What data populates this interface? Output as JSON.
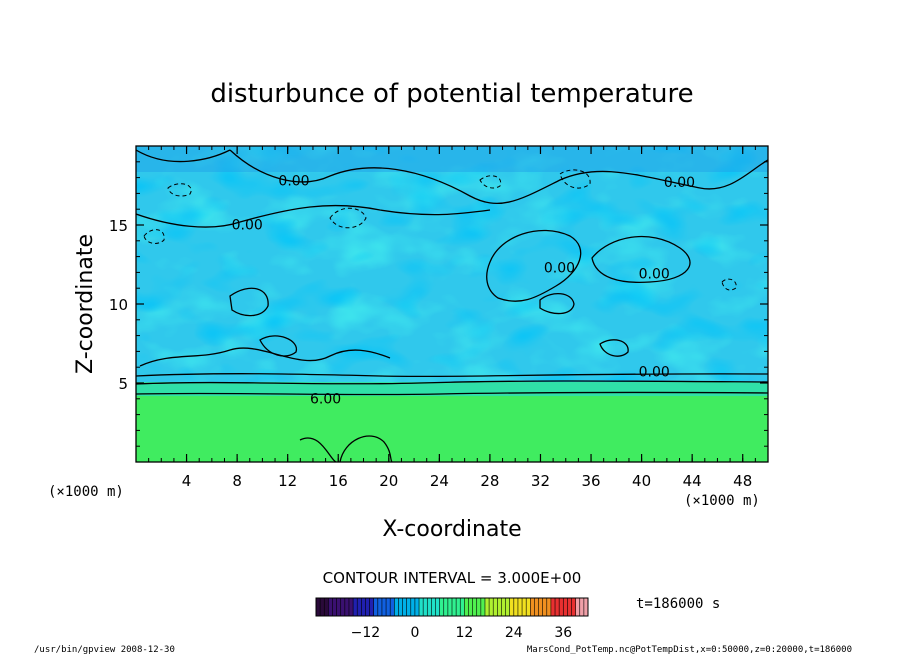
{
  "chart_data": {
    "type": "heatmap",
    "title": "disturbunce of potential temperature",
    "xlabel": "X-coordinate",
    "ylabel": "Z-coordinate",
    "x_unit": "(×1000 m)",
    "z_unit": "(×1000 m)",
    "xlim": [
      0,
      50
    ],
    "ylim": [
      0,
      20
    ],
    "x_ticks": [
      4,
      8,
      12,
      16,
      20,
      24,
      28,
      32,
      36,
      40,
      44,
      48
    ],
    "y_ticks": [
      5,
      10,
      15
    ],
    "contour_interval_label": "CONTOUR INTERVAL = 3.000E+00",
    "contour_labels": [
      {
        "text": "0.00",
        "x": 12.5,
        "y": 17.5
      },
      {
        "text": "0.00",
        "x": 8.8,
        "y": 14.7
      },
      {
        "text": "0.00",
        "x": 33.5,
        "y": 12.0
      },
      {
        "text": "0.00",
        "x": 43.0,
        "y": 17.4
      },
      {
        "text": "0.00",
        "x": 41.0,
        "y": 11.6
      },
      {
        "text": "0.00",
        "x": 41.0,
        "y": 5.4
      },
      {
        "text": "6.00",
        "x": 15.0,
        "y": 3.7
      }
    ],
    "colorbar": {
      "ticks": [
        -12,
        0,
        12,
        24,
        36
      ],
      "range": [
        -24,
        42
      ],
      "colors": [
        "#2a0a3a",
        "#3a1070",
        "#2020b0",
        "#1060e0",
        "#00b0e8",
        "#20e0c8",
        "#30f090",
        "#50f050",
        "#b0f030",
        "#f0e020",
        "#f09020",
        "#e83030",
        "#f0a0a8"
      ]
    },
    "time_label": "t=186000 s",
    "field": {
      "lower_layer_top_z": 4.2,
      "lower_layer_value": 8,
      "upper_value": -2
    }
  },
  "footer": {
    "left": "/usr/bin/gpview   2008-12-30",
    "right": "MarsCond_PotTemp.nc@PotTempDist,x=0:50000,z=0:20000,t=186000"
  }
}
